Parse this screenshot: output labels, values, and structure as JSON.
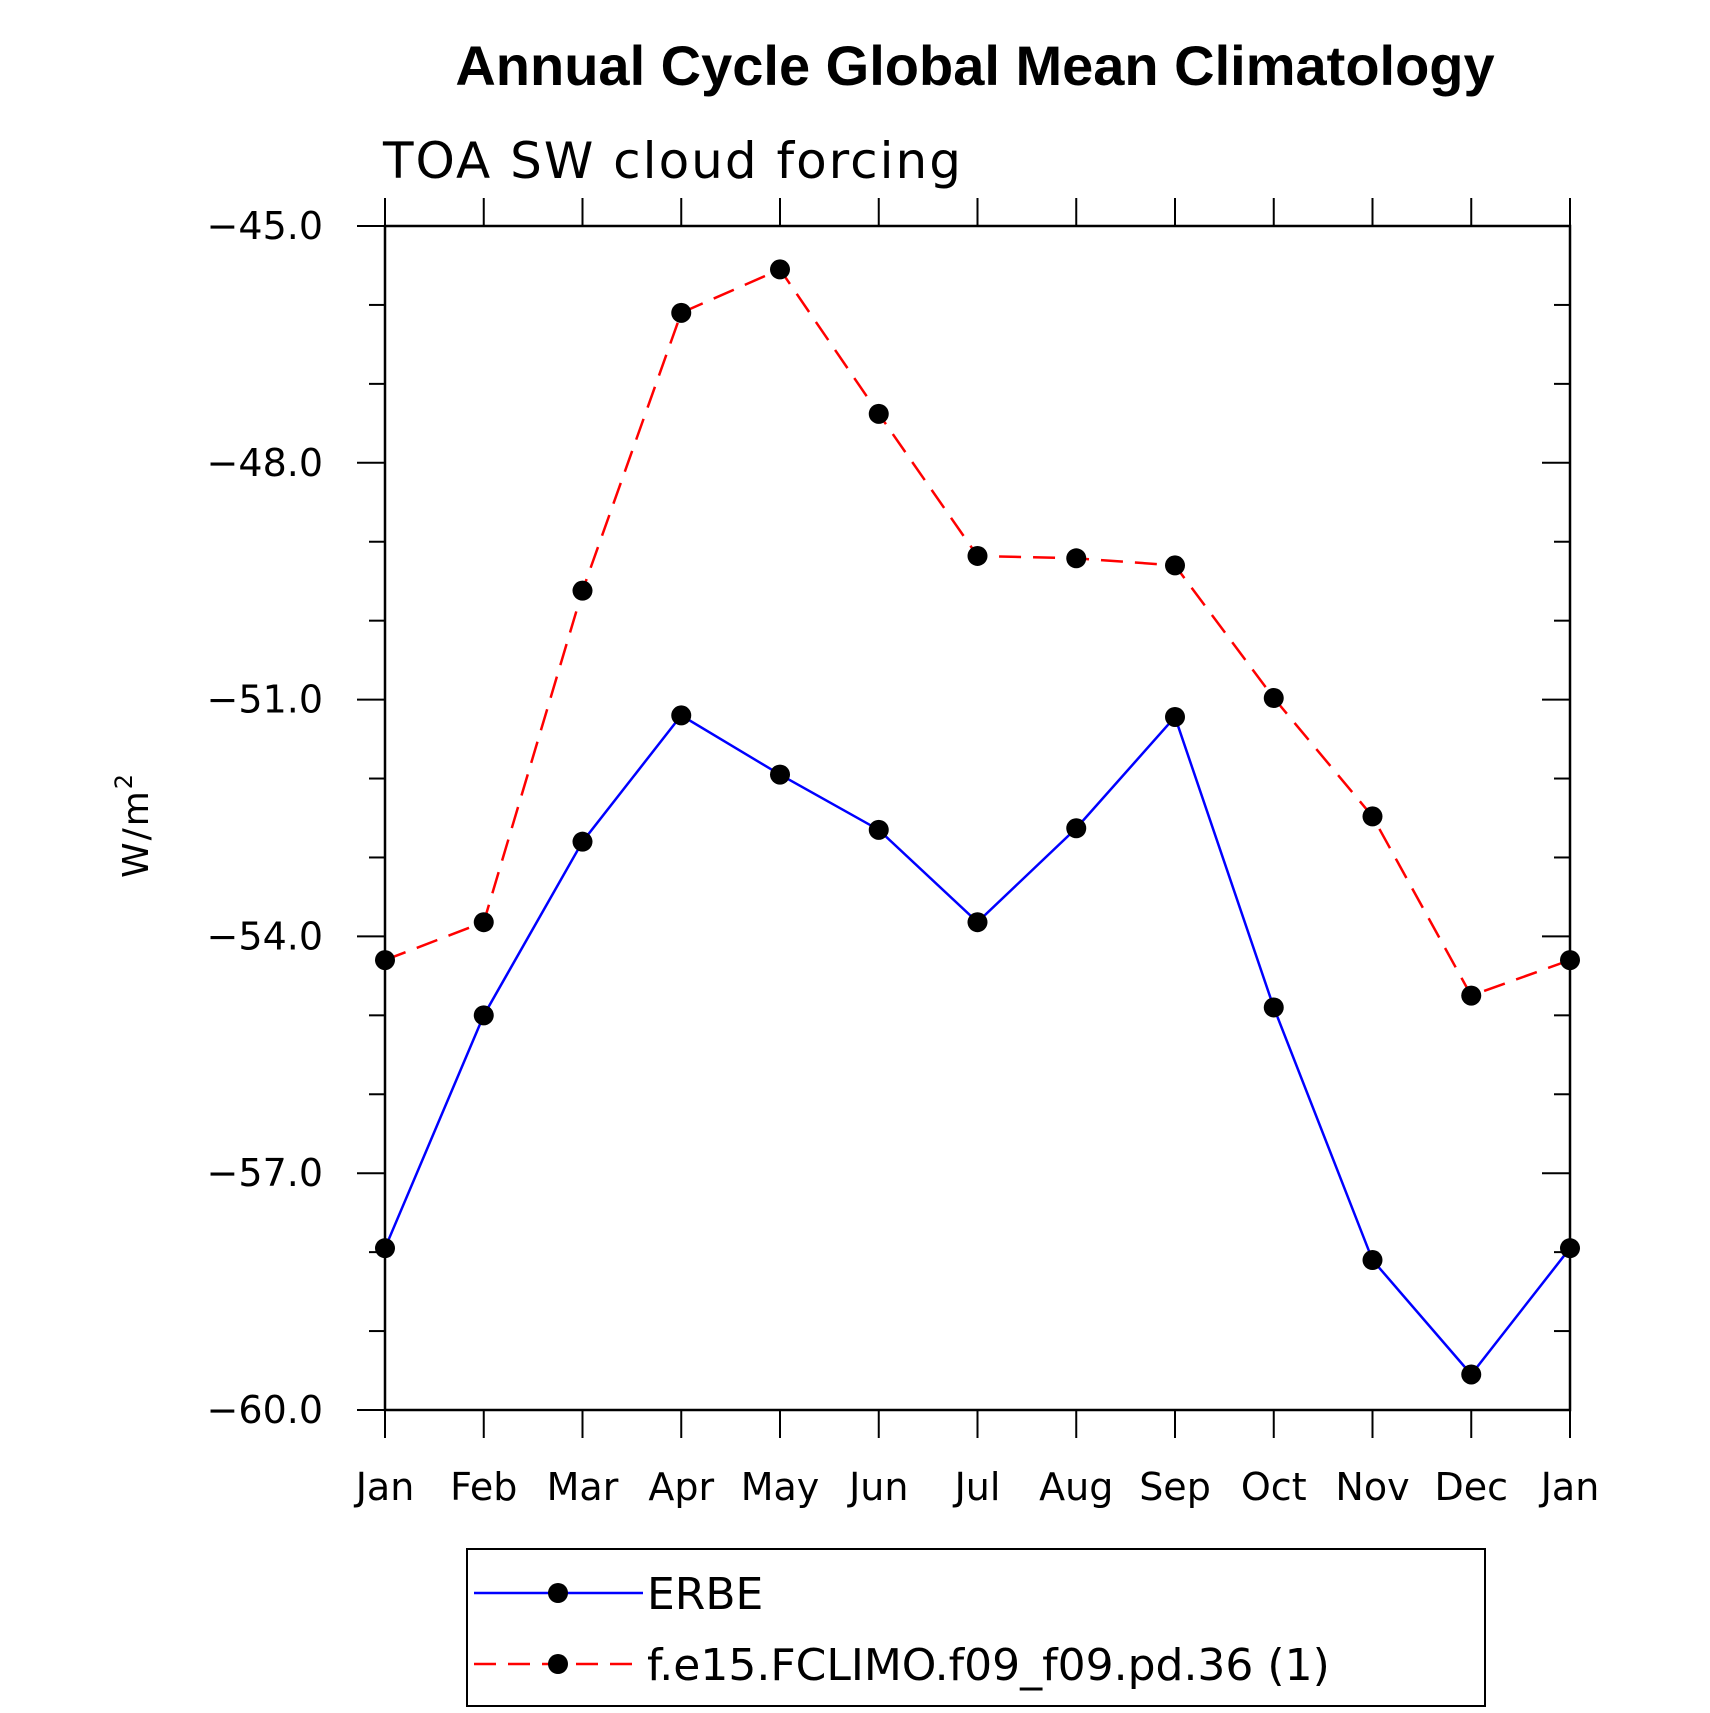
{
  "chart_data": {
    "type": "line",
    "title": "Annual Cycle Global Mean Climatology",
    "subtitle": "TOA SW cloud forcing",
    "ylabel": "W/m",
    "ylabel_superscript": "2",
    "xlabel": "",
    "categories": [
      "Jan",
      "Feb",
      "Mar",
      "Apr",
      "May",
      "Jun",
      "Jul",
      "Aug",
      "Sep",
      "Oct",
      "Nov",
      "Dec",
      "Jan"
    ],
    "ylim": [
      -60.0,
      -45.0
    ],
    "yticks": [
      -45.0,
      -48.0,
      -51.0,
      -54.0,
      -57.0,
      -60.0
    ],
    "ytick_labels": [
      "−45.0",
      "−48.0",
      "−51.0",
      "−54.0",
      "−57.0",
      "−60.0"
    ],
    "series": [
      {
        "name": "ERBE",
        "color": "#0000ff",
        "dash": "solid",
        "values": [
          -57.95,
          -55.0,
          -52.8,
          -51.2,
          -51.95,
          -52.65,
          -53.82,
          -52.63,
          -51.22,
          -54.9,
          -58.1,
          -59.55,
          -57.95
        ]
      },
      {
        "name": "f.e15.FCLIMO.f09_f09.pd.36 (1)",
        "color": "#ff0000",
        "dash": "dashed",
        "values": [
          -54.3,
          -53.82,
          -49.62,
          -46.1,
          -45.55,
          -47.38,
          -49.18,
          -49.21,
          -49.3,
          -50.98,
          -52.48,
          -54.75,
          -54.3
        ]
      }
    ],
    "marker_color": "#000000",
    "grid": false,
    "legend_position": "bottom"
  }
}
